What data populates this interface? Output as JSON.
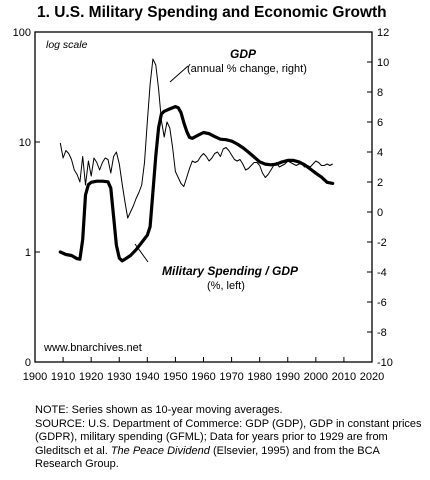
{
  "title": "1. U.S. Military Spending and Economic Growth",
  "chart_data": {
    "type": "line",
    "scale_note": "log scale",
    "watermark": "www.bnarchives.net",
    "x_ticks": [
      "1900",
      "1910",
      "1920",
      "1930",
      "1940",
      "1950",
      "1960",
      "1970",
      "1980",
      "1990",
      "2000",
      "2010",
      "2020"
    ],
    "xlim": [
      1900,
      2020
    ],
    "left_axis": {
      "scale": "log",
      "ylim": [
        0.1,
        100
      ],
      "ticks": [
        "100",
        "10",
        "1",
        "0"
      ],
      "tick_values": [
        100,
        10,
        1,
        0.1
      ]
    },
    "right_axis": {
      "scale": "linear",
      "ylim": [
        -10,
        12
      ],
      "ticks": [
        "12",
        "10",
        "8",
        "6",
        "4",
        "2",
        "0",
        "-2",
        "-4",
        "-6",
        "-8",
        "-10"
      ],
      "tick_values": [
        12,
        10,
        8,
        6,
        4,
        2,
        0,
        -2,
        -4,
        -6,
        -8,
        -10
      ]
    },
    "series": [
      {
        "name": "GDP",
        "label_line1": "GDP",
        "label_line2": "(annual % change, right)",
        "axis": "right",
        "points": [
          [
            1909,
            4.6
          ],
          [
            1910,
            3.6
          ],
          [
            1911,
            4.1
          ],
          [
            1912,
            3.9
          ],
          [
            1913,
            3.5
          ],
          [
            1914,
            2.8
          ],
          [
            1915,
            2.5
          ],
          [
            1916,
            2.0
          ],
          [
            1917,
            3.7
          ],
          [
            1918,
            1.8
          ],
          [
            1919,
            3.4
          ],
          [
            1920,
            2.4
          ],
          [
            1921,
            3.6
          ],
          [
            1922,
            3.3
          ],
          [
            1923,
            2.8
          ],
          [
            1924,
            3.3
          ],
          [
            1925,
            3.6
          ],
          [
            1926,
            3.5
          ],
          [
            1927,
            2.6
          ],
          [
            1928,
            3.7
          ],
          [
            1929,
            4.0
          ],
          [
            1930,
            3.2
          ],
          [
            1931,
            1.9
          ],
          [
            1932,
            0.7
          ],
          [
            1933,
            -0.4
          ],
          [
            1934,
            0.0
          ],
          [
            1935,
            0.4
          ],
          [
            1936,
            0.9
          ],
          [
            1937,
            1.3
          ],
          [
            1938,
            1.8
          ],
          [
            1939,
            3.3
          ],
          [
            1940,
            6.0
          ],
          [
            1941,
            8.5
          ],
          [
            1942,
            10.2
          ],
          [
            1943,
            9.8
          ],
          [
            1944,
            8.2
          ],
          [
            1945,
            6.1
          ],
          [
            1946,
            5.0
          ],
          [
            1947,
            6.0
          ],
          [
            1948,
            5.6
          ],
          [
            1949,
            4.3
          ],
          [
            1950,
            2.7
          ],
          [
            1951,
            2.3
          ],
          [
            1952,
            1.9
          ],
          [
            1953,
            1.7
          ],
          [
            1954,
            2.3
          ],
          [
            1955,
            2.9
          ],
          [
            1956,
            3.4
          ],
          [
            1957,
            3.3
          ],
          [
            1958,
            3.4
          ],
          [
            1959,
            3.7
          ],
          [
            1960,
            3.9
          ],
          [
            1961,
            3.7
          ],
          [
            1962,
            3.4
          ],
          [
            1963,
            3.6
          ],
          [
            1964,
            3.9
          ],
          [
            1965,
            4.0
          ],
          [
            1966,
            3.7
          ],
          [
            1967,
            4.2
          ],
          [
            1968,
            4.3
          ],
          [
            1969,
            4.1
          ],
          [
            1970,
            3.8
          ],
          [
            1971,
            3.5
          ],
          [
            1972,
            3.4
          ],
          [
            1973,
            3.5
          ],
          [
            1974,
            3.2
          ],
          [
            1975,
            2.8
          ],
          [
            1976,
            2.9
          ],
          [
            1977,
            3.1
          ],
          [
            1978,
            3.3
          ],
          [
            1979,
            3.3
          ],
          [
            1980,
            3.1
          ],
          [
            1981,
            2.6
          ],
          [
            1982,
            2.3
          ],
          [
            1983,
            2.5
          ],
          [
            1984,
            2.8
          ],
          [
            1985,
            3.1
          ],
          [
            1986,
            3.3
          ],
          [
            1987,
            3.0
          ],
          [
            1988,
            3.1
          ],
          [
            1989,
            3.2
          ],
          [
            1990,
            3.4
          ],
          [
            1991,
            3.3
          ],
          [
            1992,
            3.2
          ],
          [
            1993,
            3.1
          ],
          [
            1994,
            3.2
          ],
          [
            1995,
            3.2
          ],
          [
            1996,
            3.0
          ],
          [
            1997,
            3.1
          ],
          [
            1998,
            3.0
          ],
          [
            1999,
            3.2
          ],
          [
            2000,
            3.4
          ],
          [
            2001,
            3.3
          ],
          [
            2002,
            3.1
          ],
          [
            2003,
            3.1
          ],
          [
            2004,
            3.2
          ],
          [
            2005,
            3.1
          ],
          [
            2006,
            3.2
          ]
        ]
      },
      {
        "name": "Military Spending / GDP",
        "label_line1": "Military Spending / GDP",
        "label_line2": "(%, left)",
        "axis": "left",
        "points": [
          [
            1909,
            1.0
          ],
          [
            1911,
            0.95
          ],
          [
            1913,
            0.93
          ],
          [
            1915,
            0.87
          ],
          [
            1916,
            0.86
          ],
          [
            1917,
            1.3
          ],
          [
            1918,
            3.3
          ],
          [
            1919,
            4.1
          ],
          [
            1920,
            4.3
          ],
          [
            1922,
            4.4
          ],
          [
            1924,
            4.4
          ],
          [
            1926,
            4.35
          ],
          [
            1927,
            3.8
          ],
          [
            1928,
            2.1
          ],
          [
            1929,
            1.15
          ],
          [
            1930,
            0.88
          ],
          [
            1931,
            0.83
          ],
          [
            1932,
            0.86
          ],
          [
            1934,
            0.93
          ],
          [
            1936,
            1.05
          ],
          [
            1938,
            1.22
          ],
          [
            1940,
            1.42
          ],
          [
            1941,
            1.7
          ],
          [
            1942,
            3.5
          ],
          [
            1943,
            7.5
          ],
          [
            1944,
            13.5
          ],
          [
            1945,
            18.0
          ],
          [
            1946,
            19.0
          ],
          [
            1948,
            20.0
          ],
          [
            1950,
            21.0
          ],
          [
            1951,
            20.5
          ],
          [
            1952,
            18.5
          ],
          [
            1953,
            15.0
          ],
          [
            1954,
            12.5
          ],
          [
            1955,
            11.0
          ],
          [
            1956,
            10.8
          ],
          [
            1958,
            11.5
          ],
          [
            1960,
            12.2
          ],
          [
            1962,
            11.9
          ],
          [
            1964,
            11.2
          ],
          [
            1966,
            10.6
          ],
          [
            1968,
            10.5
          ],
          [
            1970,
            10.2
          ],
          [
            1972,
            9.6
          ],
          [
            1974,
            8.9
          ],
          [
            1976,
            8.1
          ],
          [
            1978,
            7.3
          ],
          [
            1980,
            6.6
          ],
          [
            1982,
            6.3
          ],
          [
            1984,
            6.2
          ],
          [
            1986,
            6.3
          ],
          [
            1988,
            6.6
          ],
          [
            1990,
            6.8
          ],
          [
            1992,
            6.8
          ],
          [
            1994,
            6.6
          ],
          [
            1996,
            6.2
          ],
          [
            1998,
            5.7
          ],
          [
            2000,
            5.2
          ],
          [
            2002,
            4.8
          ],
          [
            2004,
            4.3
          ],
          [
            2006,
            4.2
          ]
        ]
      }
    ]
  },
  "notes": {
    "line1": "NOTE: Series shown as 10-year moving averages.",
    "line2_a": "SOURCE: U.S. Department of Commerce: GDP (GDP), GDP in constant prices (GDPR), military spending (GFML); Data for years prior to 1929 are from Gleditsch et al. ",
    "line2_book": "The Peace Dividend",
    "line2_b": " (Elsevier, 1995) and from the BCA Research Group."
  }
}
